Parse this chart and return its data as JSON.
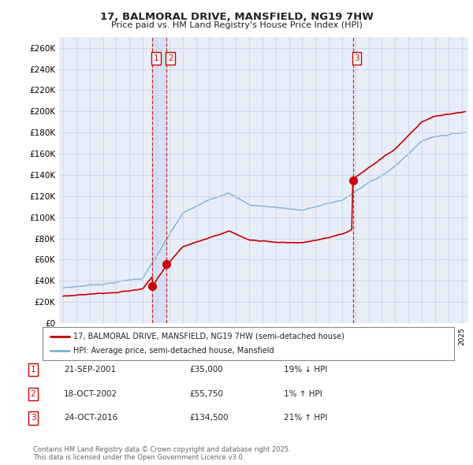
{
  "title": "17, BALMORAL DRIVE, MANSFIELD, NG19 7HW",
  "subtitle": "Price paid vs. HM Land Registry's House Price Index (HPI)",
  "ylim": [
    0,
    270000
  ],
  "yticks": [
    0,
    20000,
    40000,
    60000,
    80000,
    100000,
    120000,
    140000,
    160000,
    180000,
    200000,
    220000,
    240000,
    260000
  ],
  "ytick_labels": [
    "£0",
    "£20K",
    "£40K",
    "£60K",
    "£80K",
    "£100K",
    "£120K",
    "£140K",
    "£160K",
    "£180K",
    "£200K",
    "£220K",
    "£240K",
    "£260K"
  ],
  "year_start": 1995,
  "year_end": 2025,
  "transactions": [
    {
      "date": "2001-09-21",
      "price": 35000,
      "label": "1",
      "x": 2001.72
    },
    {
      "date": "2002-10-18",
      "price": 55750,
      "label": "2",
      "x": 2002.79
    },
    {
      "date": "2016-10-24",
      "price": 134500,
      "label": "3",
      "x": 2016.81
    }
  ],
  "vline_dates": [
    2001.72,
    2002.79,
    2016.81
  ],
  "legend_items": [
    {
      "label": "17, BALMORAL DRIVE, MANSFIELD, NG19 7HW (semi-detached house)",
      "color": "#cc0000",
      "lw": 2
    },
    {
      "label": "HPI: Average price, semi-detached house, Mansfield",
      "color": "#7ab0d4",
      "lw": 1.5
    }
  ],
  "table_rows": [
    {
      "num": "1",
      "date": "21-SEP-2001",
      "price": "£35,000",
      "change": "19% ↓ HPI"
    },
    {
      "num": "2",
      "date": "18-OCT-2002",
      "price": "£55,750",
      "change": "1% ↑ HPI"
    },
    {
      "num": "3",
      "date": "24-OCT-2016",
      "price": "£134,500",
      "change": "21% ↑ HPI"
    }
  ],
  "footer": "Contains HM Land Registry data © Crown copyright and database right 2025.\nThis data is licensed under the Open Government Licence v3.0.",
  "bg_color": "#ffffff",
  "grid_color": "#c8d4e8",
  "plot_bg": "#e8eef8"
}
